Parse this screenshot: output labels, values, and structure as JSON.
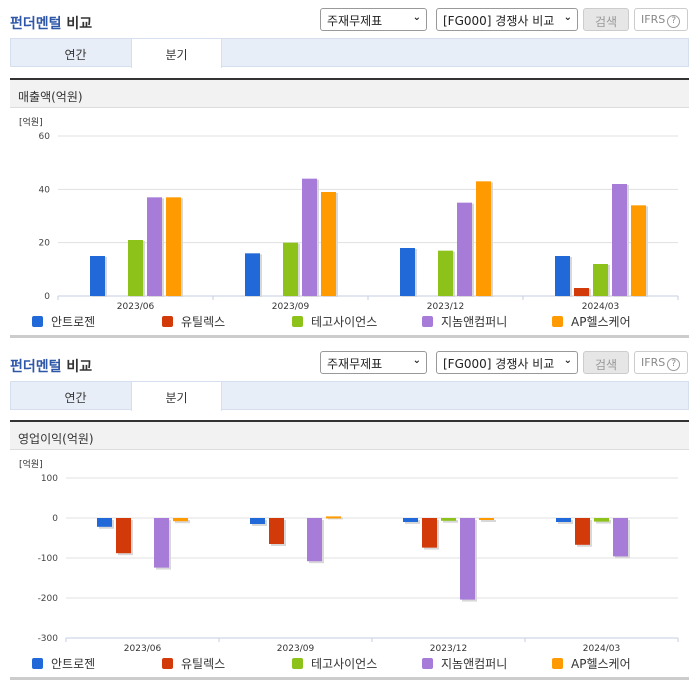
{
  "sections": [
    {
      "title_accent": "펀더멘털",
      "title_rest": "비교",
      "select1": "주재무제표",
      "select2": "[FG000] 경쟁사 비교",
      "search_label": "검색",
      "ifrs_label": "IFRS",
      "ifrs_help": "?",
      "tabs": [
        {
          "label": "연간"
        },
        {
          "label": "분기"
        }
      ],
      "active_tab": "분기",
      "metric_title": "매출액(억원)",
      "unit": "[억원]"
    },
    {
      "title_accent": "펀더멘털",
      "title_rest": "비교",
      "select1": "주재무제표",
      "select2": "[FG000] 경쟁사 비교",
      "search_label": "검색",
      "ifrs_label": "IFRS",
      "ifrs_help": "?",
      "tabs": [
        {
          "label": "연간"
        },
        {
          "label": "분기"
        }
      ],
      "active_tab": "분기",
      "metric_title": "영업이익(억원)",
      "unit": "[억원]"
    }
  ],
  "legend": [
    {
      "name": "안트로젠",
      "color": "#2168d8"
    },
    {
      "name": "유틸렉스",
      "color": "#d23a0a"
    },
    {
      "name": "테고사이언스",
      "color": "#8cc21a"
    },
    {
      "name": "지놈앤컴퍼니",
      "color": "#a77bd8"
    },
    {
      "name": "AP헬스케어",
      "color": "#ff9a00"
    }
  ],
  "chart_data": [
    {
      "type": "bar",
      "title": "매출액(억원)",
      "xlabel": "",
      "ylabel": "[억원]",
      "ylim": [
        0,
        60
      ],
      "yticks": [
        0,
        20,
        40,
        60
      ],
      "grid": true,
      "legend_position": "bottom",
      "categories": [
        "2023/06",
        "2023/09",
        "2023/12",
        "2024/03"
      ],
      "series": [
        {
          "name": "안트로젠",
          "values": [
            15,
            16,
            18,
            15
          ]
        },
        {
          "name": "유틸렉스",
          "values": [
            0,
            0,
            0,
            3
          ]
        },
        {
          "name": "테고사이언스",
          "values": [
            21,
            20,
            17,
            12
          ]
        },
        {
          "name": "지놈앤컴퍼니",
          "values": [
            37,
            44,
            35,
            42
          ]
        },
        {
          "name": "AP헬스케어",
          "values": [
            37,
            39,
            43,
            34
          ]
        }
      ]
    },
    {
      "type": "bar",
      "title": "영업이익(억원)",
      "xlabel": "",
      "ylabel": "[억원]",
      "ylim": [
        -300,
        100
      ],
      "yticks": [
        100,
        0,
        -100,
        -200,
        -300
      ],
      "grid": true,
      "legend_position": "bottom",
      "categories": [
        "2023/06",
        "2023/09",
        "2023/12",
        "2024/03"
      ],
      "series": [
        {
          "name": "안트로젠",
          "values": [
            -22,
            -15,
            -10,
            -10
          ]
        },
        {
          "name": "유틸렉스",
          "values": [
            -88,
            -65,
            -74,
            -67
          ]
        },
        {
          "name": "테고사이언스",
          "values": [
            0,
            0,
            -7,
            -9
          ]
        },
        {
          "name": "지놈앤컴퍼니",
          "values": [
            -124,
            -108,
            -204,
            -96
          ]
        },
        {
          "name": "AP헬스케어",
          "values": [
            -8,
            4,
            -3,
            0
          ]
        }
      ]
    }
  ]
}
